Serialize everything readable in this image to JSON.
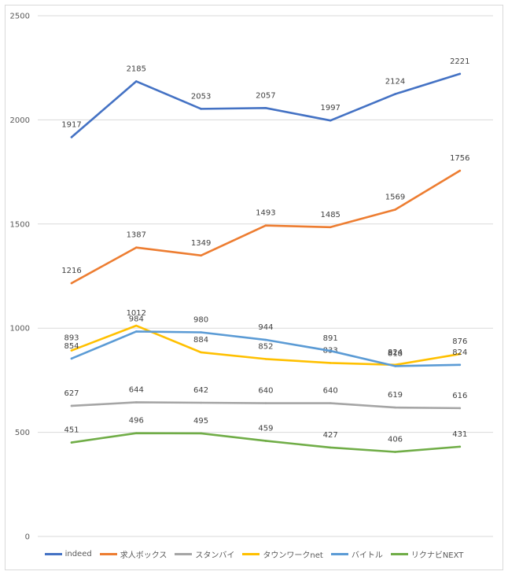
{
  "chart_data": {
    "type": "line",
    "categories": [
      "",
      "",
      "",
      "",
      "",
      "",
      ""
    ],
    "ylim": [
      0,
      2500
    ],
    "yticks": [
      0,
      500,
      1000,
      1500,
      2000,
      2500
    ],
    "grid": true,
    "legend_position": "bottom",
    "series": [
      {
        "name": "indeed",
        "color": "#4472c4",
        "values": [
          1917,
          2185,
          2053,
          2057,
          1997,
          2124,
          2221
        ]
      },
      {
        "name": "求人ボックス",
        "color": "#ed7d31",
        "values": [
          1216,
          1387,
          1349,
          1493,
          1485,
          1569,
          1756
        ]
      },
      {
        "name": "スタンバイ",
        "color": "#a5a5a5",
        "values": [
          627,
          644,
          642,
          640,
          640,
          619,
          616
        ]
      },
      {
        "name": "タウンワークnet",
        "color": "#ffc000",
        "values": [
          893,
          1012,
          884,
          852,
          833,
          824,
          876
        ]
      },
      {
        "name": "バイトル",
        "color": "#5b9bd5",
        "values": [
          854,
          984,
          980,
          944,
          891,
          818,
          824
        ]
      },
      {
        "name": "リクナビNEXT",
        "color": "#70ad47",
        "values": [
          451,
          496,
          495,
          459,
          427,
          406,
          431
        ]
      }
    ]
  }
}
